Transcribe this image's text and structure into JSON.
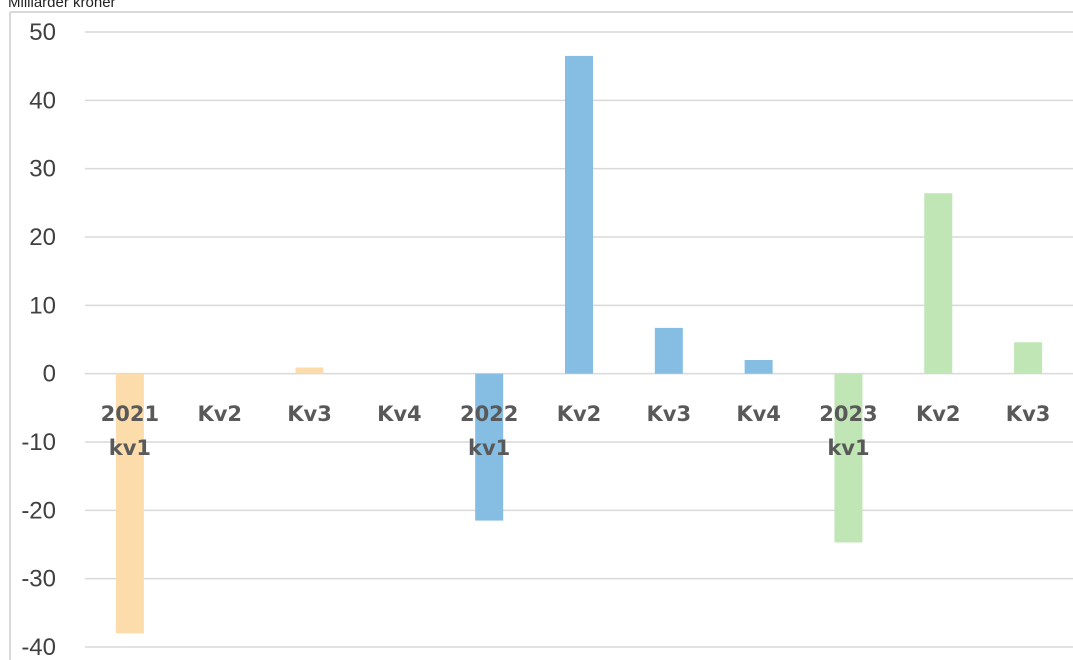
{
  "unit_label": "Milliarder kroner",
  "colors": {
    "q2021": "#fcdcaa",
    "q2022": "#85bee2",
    "q2023": "#bfe6b4",
    "grid": "#d9d9d9",
    "axis": "#d9d9d9"
  },
  "chart_data": {
    "type": "bar",
    "title": "",
    "xlabel": "",
    "ylabel": "Milliarder kroner",
    "ylim": [
      -40,
      50
    ],
    "yticks": [
      50,
      40,
      30,
      20,
      10,
      0,
      -10,
      -20,
      -30,
      -40
    ],
    "grid": true,
    "legend": "none",
    "categories": [
      [
        "2021",
        "kv1"
      ],
      [
        "Kv2"
      ],
      [
        "Kv3"
      ],
      [
        "Kv4"
      ],
      [
        "2022",
        "kv1"
      ],
      [
        "Kv2"
      ],
      [
        "Kv3"
      ],
      [
        "Kv4"
      ],
      [
        "2023",
        "kv1"
      ],
      [
        "Kv2"
      ],
      [
        "Kv3"
      ]
    ],
    "values": [
      -38,
      0,
      0.9,
      0,
      -21.5,
      46.5,
      6.7,
      2.0,
      -24.7,
      26.4,
      4.6
    ],
    "bar_color_keys": [
      "q2021",
      "q2021",
      "q2021",
      "q2021",
      "q2022",
      "q2022",
      "q2022",
      "q2022",
      "q2023",
      "q2023",
      "q2023"
    ]
  }
}
